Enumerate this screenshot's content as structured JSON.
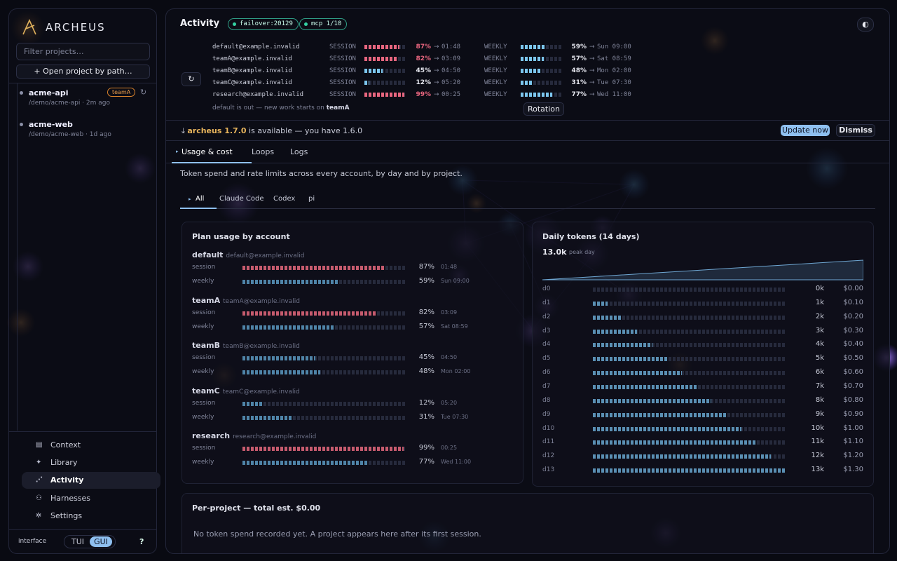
{
  "sidebar": {
    "brand": "ARCHEUS",
    "filter_placeholder": "Filter projects…",
    "open_project": "Open project by path…",
    "projects": [
      {
        "name": "acme-api",
        "badge": "teamA",
        "path": "/demo/acme-api · 2m ago"
      },
      {
        "name": "acme-web",
        "path": "/demo/acme-web · 1d ago"
      }
    ],
    "nav": [
      "Context",
      "Library",
      "Activity",
      "Harnesses",
      "Settings"
    ],
    "footer": {
      "label": "interface",
      "options": [
        "TUI",
        "GUI"
      ],
      "help": "?"
    }
  },
  "header": {
    "title": "Activity",
    "badges": [
      "failover:20129",
      "mcp 1/10"
    ]
  },
  "accounts": {
    "session_label": "SESSION",
    "weekly_label": "WEEKLY",
    "xlim": [
      0,
      100
    ],
    "rows": [
      {
        "email": "default@example.invalid",
        "name": "default",
        "session": 87,
        "session_label": "87%",
        "session_reset": "01:48",
        "weekly": 59,
        "weekly_label": "59%",
        "weekly_reset": "Sun 09:00",
        "color": "#e8667f"
      },
      {
        "email": "teamA@example.invalid",
        "name": "teamA",
        "session": 82,
        "session_label": "82%",
        "session_reset": "03:09",
        "weekly": 57,
        "weekly_label": "57%",
        "weekly_reset": "Sat 08:59",
        "color": "#e8667f"
      },
      {
        "email": "teamB@example.invalid",
        "name": "teamB",
        "session": 45,
        "session_label": "45%",
        "session_reset": "04:50",
        "weekly": 48,
        "weekly_label": "48%",
        "weekly_reset": "Mon 02:00",
        "color": "#7cc6ee"
      },
      {
        "email": "teamC@example.invalid",
        "name": "teamC",
        "session": 12,
        "session_label": "12%",
        "session_reset": "05:20",
        "weekly": 31,
        "weekly_label": "31%",
        "weekly_reset": "Tue 07:30",
        "color": "#7cc6ee"
      },
      {
        "email": "research@example.invalid",
        "name": "research",
        "session": 99,
        "session_label": "99%",
        "session_reset": "00:25",
        "weekly": 77,
        "weekly_label": "77%",
        "weekly_reset": "Wed 11:00",
        "color": "#e8667f"
      }
    ],
    "note_prefix": "default is out — new work starts on",
    "note_target": "teamA",
    "rotation": "Rotation"
  },
  "update": {
    "name": "archeus 1.7.0",
    "text": "is available — you have 1.6.0",
    "primary": "Update now",
    "secondary": "Dismiss"
  },
  "tabs": [
    "Usage & cost",
    "Loops",
    "Logs"
  ],
  "description": "Token spend and rate limits across every account, by day and by project.",
  "filters": [
    "All",
    "Claude Code",
    "Codex",
    "pi"
  ],
  "plan_usage": {
    "title": "Plan usage by account",
    "session_label": "session",
    "weekly_label": "weekly"
  },
  "daily_tokens": {
    "title": "Daily tokens (14 days)",
    "peak": "13.0k",
    "peak_label": "peak day",
    "xlim": [
      0,
      13000
    ],
    "days": [
      "d0",
      "d1",
      "d2",
      "d3",
      "d4",
      "d5",
      "d6",
      "d7",
      "d8",
      "d9",
      "d10",
      "d11",
      "d12",
      "d13"
    ],
    "tokens": [
      0,
      1000,
      2000,
      3000,
      4000,
      5000,
      6000,
      7000,
      8000,
      9000,
      10000,
      11000,
      12000,
      13000
    ],
    "token_labels": [
      "0k",
      "1k",
      "2k",
      "3k",
      "4k",
      "5k",
      "6k",
      "7k",
      "8k",
      "9k",
      "10k",
      "11k",
      "12k",
      "13k"
    ],
    "cost_labels": [
      "$0.00",
      "$0.10",
      "$0.20",
      "$0.30",
      "$0.40",
      "$0.50",
      "$0.60",
      "$0.70",
      "$0.80",
      "$0.90",
      "$1.00",
      "$1.10",
      "$1.20",
      "$1.30"
    ]
  },
  "per_project": {
    "title": "Per-project — total est. $0.00",
    "empty": "No token spend recorded yet. A project appears here after its first session."
  }
}
